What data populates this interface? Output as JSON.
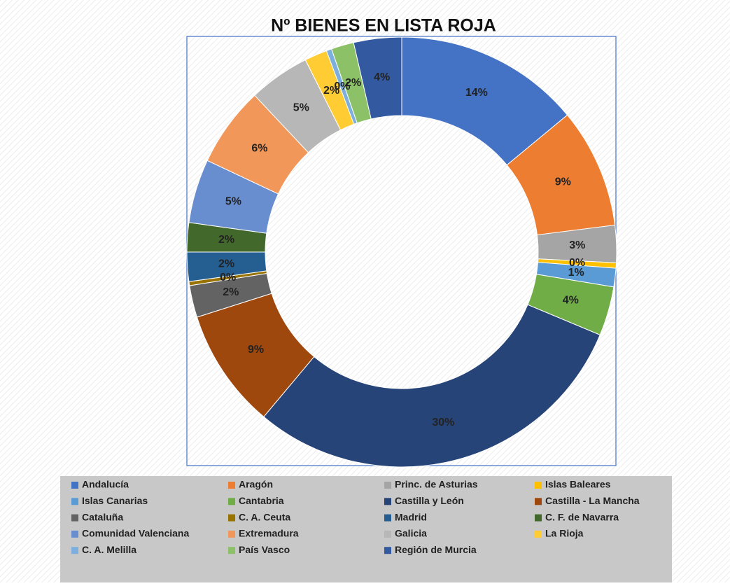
{
  "chart_data": {
    "type": "donut",
    "title": "Nº BIENES EN LISTA ROJA",
    "categories": [
      "Andalucía",
      "Aragón",
      "Princ.  de Asturias",
      "Islas Baleares",
      "Islas Canarias",
      "Cantabria",
      "Castilla y León",
      "Castilla - La Mancha",
      "Cataluña",
      "C. A. Ceuta",
      " Madrid",
      "C. F. de Navarra",
      "Comunidad Valenciana",
      "Extremadura",
      "Galicia",
      "La Rioja",
      "C. A. Melilla",
      "País Vasco",
      "Región de Murcia"
    ],
    "values": [
      14,
      9,
      2.8,
      0.4,
      1.4,
      3.7,
      29.8,
      9,
      2.4,
      0.3,
      2.2,
      2.2,
      4.8,
      6,
      4.6,
      1.7,
      0.4,
      1.7,
      3.6
    ],
    "value_labels": [
      "14%",
      "9%",
      "3%",
      "0%",
      "1%",
      "4%",
      "30%",
      "9%",
      "2%",
      "0%",
      "2%",
      "2%",
      "5%",
      "6%",
      "5%",
      "2%",
      "0%",
      "2%",
      "4%"
    ],
    "colors": [
      "#4472c4",
      "#ed7d31",
      "#a5a5a5",
      "#ffc000",
      "#5b9bd5",
      "#70ad47",
      "#264478",
      "#9e480e",
      "#636363",
      "#997300",
      "#255e91",
      "#43682b",
      "#698ed0",
      "#f1975a",
      "#b7b7b7",
      "#ffcd33",
      "#7cafdd",
      "#8cc168",
      "#335aa1"
    ],
    "legend": "bottom"
  }
}
